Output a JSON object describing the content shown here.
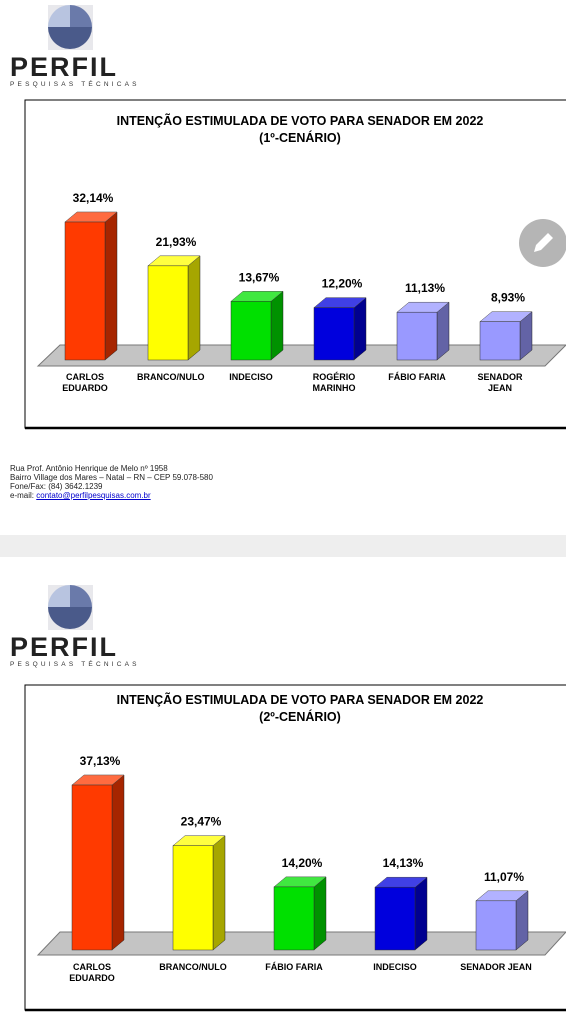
{
  "pages": [
    {
      "logo_name": "PERFIL",
      "logo_tagline": "PESQUISAS TÉCNICAS",
      "address_lines": [
        "Rua Prof. Antônio Henrique de Melo nº 1958",
        "Bairro Village dos Mares – Natal – RN – CEP 59.078-580",
        "Fone/Fax: (84) 3642.1239"
      ],
      "email_label": "e-mail:",
      "email": "contato@perfilpesquisas.com.br"
    },
    {
      "logo_name": "PERFIL",
      "logo_tagline": "PESQUISAS TÉCNICAS"
    }
  ],
  "chart_data": [
    {
      "type": "bar3d",
      "title": "INTENÇÃO ESTIMULADA DE VOTO PARA SENADOR EM 2022",
      "subtitle": "(1º-CENÁRIO)",
      "categories": [
        "CARLOS EDUARDO",
        "BRANCO/NULO",
        "INDECISO",
        "ROGÉRIO MARINHO",
        "FÁBIO FARIA",
        "SENADOR JEAN"
      ],
      "values": [
        32.14,
        21.93,
        13.67,
        12.2,
        11.13,
        8.93
      ],
      "value_labels": [
        "32,14%",
        "21,93%",
        "13,67%",
        "12,20%",
        "11,13%",
        "8,93%"
      ],
      "colors": [
        "#ff3a00",
        "#ffff00",
        "#00e000",
        "#0000dd",
        "#9999ff",
        "#9999ff"
      ]
    },
    {
      "type": "bar3d",
      "title": "INTENÇÃO ESTIMULADA DE VOTO PARA SENADOR EM 2022",
      "subtitle": "(2º-CENÁRIO)",
      "categories": [
        "CARLOS EDUARDO",
        "BRANCO/NULO",
        "FÁBIO FARIA",
        "INDECISO",
        "SENADOR JEAN"
      ],
      "values": [
        37.13,
        23.47,
        14.2,
        14.13,
        11.07
      ],
      "value_labels": [
        "37,13%",
        "23,47%",
        "14,20%",
        "14,13%",
        "11,07%"
      ],
      "colors": [
        "#ff3a00",
        "#ffff00",
        "#00e000",
        "#0000dd",
        "#9999ff"
      ]
    }
  ]
}
